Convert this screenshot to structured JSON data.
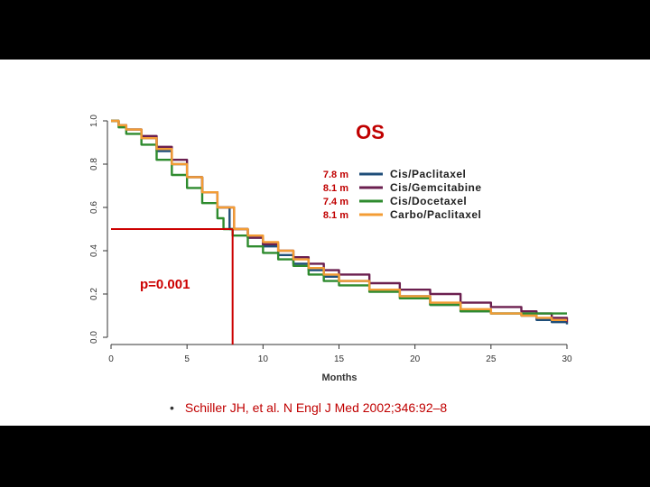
{
  "chart_data": {
    "type": "line",
    "title": "OS",
    "xlabel": "Months",
    "ylabel": "",
    "xlim": [
      0,
      30
    ],
    "ylim": [
      0,
      1
    ],
    "x_ticks": [
      "0",
      "5",
      "10",
      "15",
      "20",
      "25",
      "30"
    ],
    "y_ticks": [
      "0.0",
      "0.2",
      "0.4",
      "0.6",
      "0.8",
      "1.0"
    ],
    "legend_placement": "top-right",
    "grid": false,
    "series": [
      {
        "name": "Cis/Paclitaxel",
        "median_label": "7.8 m",
        "color": "#1f4e79",
        "x": [
          0,
          0.5,
          1,
          2,
          3,
          4,
          5,
          6,
          7,
          7.8,
          9,
          10,
          11,
          12,
          13,
          14,
          15,
          17,
          19,
          21,
          23,
          25,
          27,
          28,
          29,
          30
        ],
        "y": [
          1.0,
          0.98,
          0.96,
          0.92,
          0.86,
          0.8,
          0.74,
          0.67,
          0.6,
          0.5,
          0.46,
          0.42,
          0.38,
          0.34,
          0.31,
          0.28,
          0.26,
          0.22,
          0.19,
          0.15,
          0.12,
          0.11,
          0.1,
          0.08,
          0.07,
          0.06
        ]
      },
      {
        "name": "Cis/Gemcitabine",
        "median_label": "8.1 m",
        "color": "#6b1f4f",
        "x": [
          0,
          0.5,
          1,
          2,
          3,
          4,
          5,
          6,
          7,
          8.1,
          9,
          10,
          11,
          12,
          13,
          14,
          15,
          17,
          19,
          21,
          23,
          25,
          27,
          28,
          29,
          30
        ],
        "y": [
          1.0,
          0.98,
          0.96,
          0.93,
          0.88,
          0.82,
          0.74,
          0.67,
          0.6,
          0.5,
          0.46,
          0.43,
          0.4,
          0.37,
          0.34,
          0.31,
          0.29,
          0.25,
          0.22,
          0.2,
          0.16,
          0.14,
          0.12,
          0.11,
          0.09,
          0.07
        ]
      },
      {
        "name": "Cis/Docetaxel",
        "median_label": "7.4 m",
        "color": "#2e8b2e",
        "x": [
          0,
          0.5,
          1,
          2,
          3,
          4,
          5,
          6,
          7,
          7.4,
          8,
          9,
          10,
          11,
          12,
          13,
          14,
          15,
          17,
          19,
          21,
          23,
          25,
          27,
          28,
          29,
          30
        ],
        "y": [
          1.0,
          0.97,
          0.94,
          0.89,
          0.82,
          0.75,
          0.69,
          0.62,
          0.55,
          0.5,
          0.47,
          0.42,
          0.39,
          0.36,
          0.33,
          0.29,
          0.26,
          0.24,
          0.21,
          0.18,
          0.15,
          0.12,
          0.11,
          0.11,
          0.11,
          0.11,
          0.11
        ]
      },
      {
        "name": "Carbo/Paclitaxel",
        "median_label": "8.1 m",
        "color": "#f39c34",
        "x": [
          0,
          0.5,
          1,
          2,
          3,
          4,
          5,
          6,
          7,
          8.1,
          9,
          10,
          11,
          12,
          13,
          14,
          15,
          17,
          19,
          21,
          23,
          25,
          27,
          28,
          29,
          30
        ],
        "y": [
          1.0,
          0.98,
          0.96,
          0.92,
          0.87,
          0.8,
          0.74,
          0.67,
          0.6,
          0.5,
          0.47,
          0.44,
          0.4,
          0.36,
          0.32,
          0.29,
          0.26,
          0.22,
          0.19,
          0.16,
          0.13,
          0.11,
          0.1,
          0.09,
          0.08,
          0.08
        ]
      }
    ],
    "annotations": {
      "p_value": "p=0.001",
      "median_line": {
        "x": 8,
        "y": 0.5,
        "color": "#cc0000"
      }
    }
  },
  "citation": {
    "bullet": "•",
    "text": "Schiller JH, et al. N Engl J Med 2002;346:92–8"
  },
  "colors": {
    "title": "#c00000",
    "median_labels": "#c00000",
    "annotation": "#cc0000",
    "axis": "#333333",
    "slide_background": "#ffffff",
    "frame_background": "#000000"
  }
}
